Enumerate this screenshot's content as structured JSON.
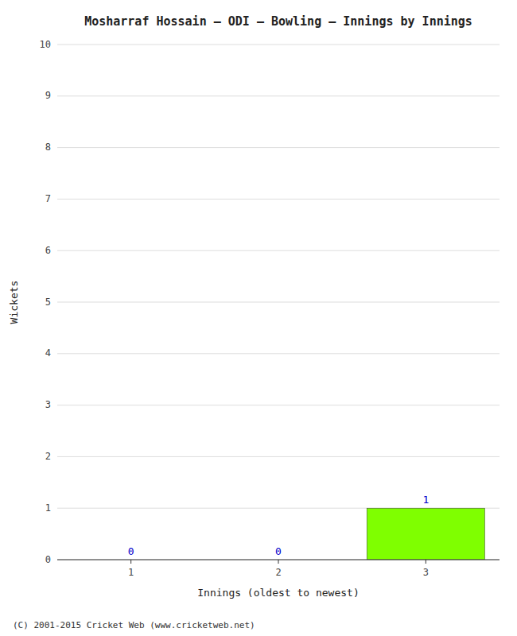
{
  "chart_data": {
    "type": "bar",
    "title": "Mosharraf Hossain – ODI – Bowling – Innings by Innings",
    "x_label": "Innings (oldest to newest)",
    "y_label": "Wickets",
    "categories": [
      1,
      2,
      3
    ],
    "values": [
      0,
      0,
      1
    ],
    "color": "#7fff00",
    "ylim": [
      0,
      10
    ],
    "yticks": [
      0,
      1,
      2,
      3,
      4,
      5,
      6,
      7,
      8,
      9,
      10
    ],
    "grid": true,
    "data_labels": true,
    "footer": "(C) 2001-2015 Cricket Web (www.cricketweb.net)"
  }
}
